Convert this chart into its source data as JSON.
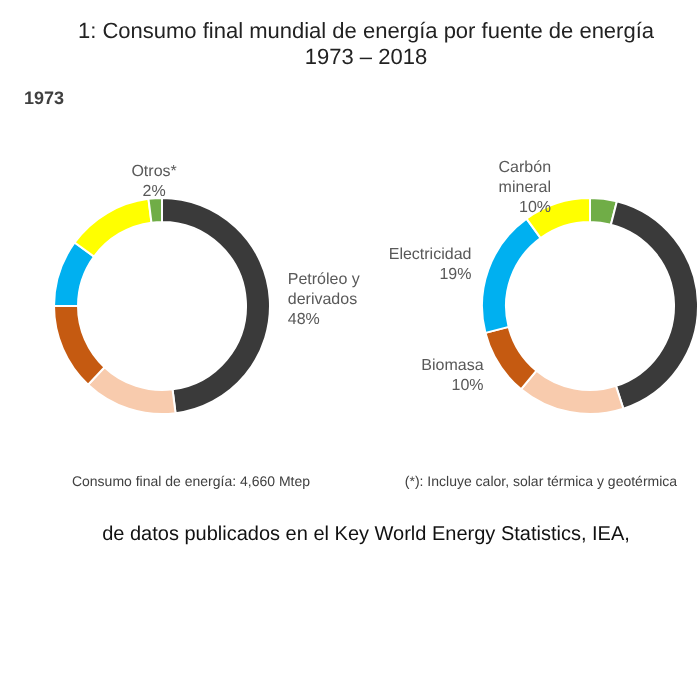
{
  "chart_data": [
    {
      "type": "donut",
      "title": "1: Consumo final mundial de energía por fuente de energía",
      "subtitle": "1973 – 2018",
      "legend_title": "1973",
      "categories": [
        "Petróleo y derivados",
        null,
        null,
        null,
        null,
        "Otros*"
      ],
      "values": [
        48,
        14,
        13,
        10,
        13,
        2
      ],
      "value_labels": [
        "48%",
        null,
        null,
        null,
        null,
        "2%"
      ],
      "colors": [
        "#3a3a3a",
        "#f8cbad",
        "#c55a11",
        "#00b0f0",
        "#ffff00",
        "#70ad47"
      ],
      "annotations": [
        "Consumo final de energía: 4,660 Mtep"
      ]
    },
    {
      "type": "donut",
      "categories": [
        null,
        null,
        null,
        "Biomasa",
        "Electricidad",
        "Carbón mineral"
      ],
      "values": [
        4,
        41,
        16,
        10,
        19,
        10
      ],
      "value_labels": [
        null,
        null,
        null,
        "10%",
        "19%",
        "10%"
      ],
      "colors": [
        "#70ad47",
        "#3a3a3a",
        "#f8cbad",
        "#c55a11",
        "#00b0f0",
        "#ffff00"
      ],
      "annotations": [
        "(*): Incluye calor, solar térmica y geotérmica",
        "de datos publicados en el Key World Energy Statistics, IEA,"
      ]
    }
  ]
}
